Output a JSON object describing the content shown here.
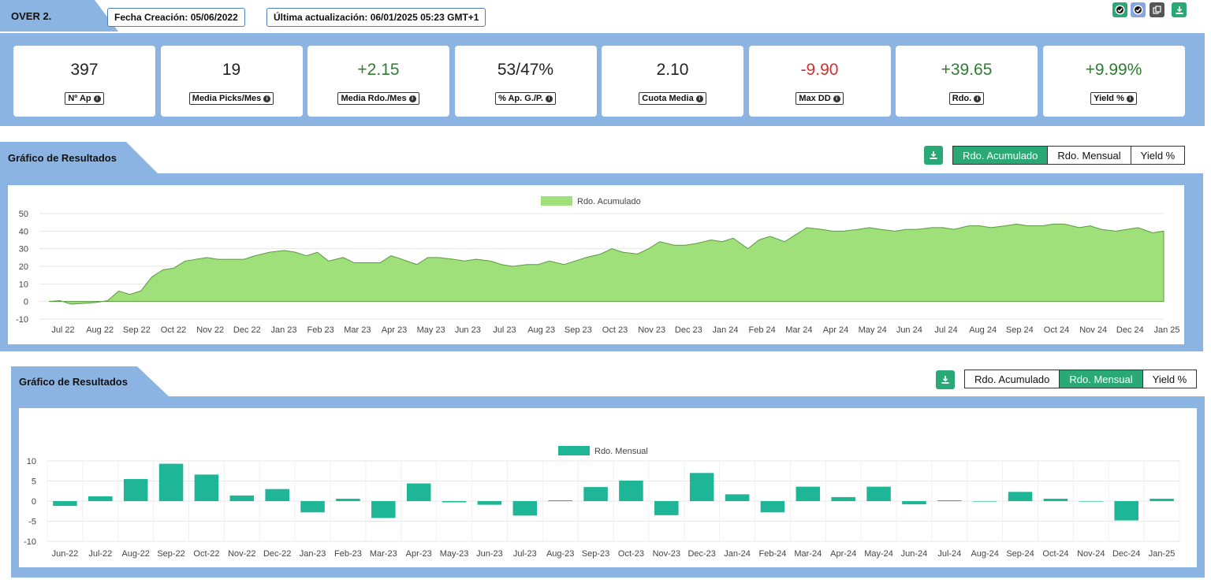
{
  "header": {
    "title": "OVER 2.",
    "created": "Fecha Creación: 05/06/2022",
    "updated": "Última actualización: 06/01/2025 05:23 GMT+1"
  },
  "stats": [
    {
      "value": "397",
      "label": "Nº Ap",
      "color": "#222222"
    },
    {
      "value": "19",
      "label": "Media Picks/Mes",
      "color": "#222222"
    },
    {
      "value": "+2.15",
      "label": "Media Rdo./Mes",
      "color": "#2e7d32"
    },
    {
      "value": "53/47%",
      "label": "% Ap. G./P.",
      "color": "#222222"
    },
    {
      "value": "2.10",
      "label": "Cuota Media",
      "color": "#222222"
    },
    {
      "value": "-9.90",
      "label": "Max DD",
      "color": "#d32f2f"
    },
    {
      "value": "+39.65",
      "label": "Rdo.",
      "color": "#2e7d32"
    },
    {
      "value": "+9.99%",
      "label": "Yield %",
      "color": "#2e7d32"
    }
  ],
  "section1": {
    "title": "Gráfico de Resultados",
    "tabs": [
      "Rdo. Acumulado",
      "Rdo. Mensual",
      "Yield %"
    ],
    "active": 0
  },
  "section2": {
    "title": "Gráfico de Resultados",
    "tabs": [
      "Rdo. Acumulado",
      "Rdo. Mensual",
      "Yield %"
    ],
    "active": 1
  },
  "colors": {
    "accent": "#2aa876",
    "panel": "#8cb4e2",
    "area": "#a0e07a",
    "bar": "#1fb597"
  },
  "chart_data": [
    {
      "type": "area",
      "legend": "Rdo. Acumulado",
      "legend_position": "top-center",
      "ylim": [
        -10,
        50
      ],
      "yticks": [
        -10,
        0,
        10,
        20,
        30,
        40,
        50
      ],
      "x_tick_labels": [
        "Jul 22",
        "Aug 22",
        "Sep 22",
        "Oct 22",
        "Nov 22",
        "Dec 22",
        "Jan 23",
        "Feb 23",
        "Mar 23",
        "Apr 23",
        "May 23",
        "Jun 23",
        "Jul 23",
        "Aug 23",
        "Sep 23",
        "Oct 23",
        "Nov 23",
        "Dec 23",
        "Jan 24",
        "Feb 24",
        "Mar 24",
        "Apr 24",
        "May 24",
        "Jun 24",
        "Jul 24",
        "Aug 24",
        "Sep 24",
        "Oct 24",
        "Nov 24",
        "Dec 24",
        "Jan 25"
      ],
      "x": [
        0,
        0.3,
        0.6,
        1.0,
        1.3,
        1.6,
        1.9,
        2.2,
        2.5,
        2.8,
        3.1,
        3.4,
        3.7,
        4.0,
        4.3,
        4.6,
        5.0,
        5.3,
        5.6,
        6.0,
        6.4,
        6.7,
        7.0,
        7.3,
        7.6,
        8.0,
        8.3,
        8.6,
        9.0,
        9.3,
        9.6,
        10.0,
        10.3,
        10.6,
        11.0,
        11.3,
        11.6,
        12.0,
        12.3,
        12.6,
        13.0,
        13.3,
        13.6,
        14.0,
        14.3,
        14.6,
        15.0,
        15.3,
        15.6,
        16.0,
        16.3,
        16.6,
        17.0,
        17.3,
        17.6,
        18.0,
        18.3,
        18.6,
        19.0,
        19.3,
        19.6,
        20.0,
        20.3,
        20.6,
        21.0,
        21.3,
        21.6,
        22.0,
        22.3,
        22.6,
        23.0,
        23.3,
        23.6,
        24.0,
        24.3,
        24.6,
        25.0,
        25.3,
        25.6,
        26.0,
        26.3,
        26.6,
        27.0,
        27.3,
        27.6,
        28.0,
        28.3,
        28.6,
        29.0,
        29.3,
        29.6,
        30.0,
        30.3
      ],
      "y": [
        0,
        0.5,
        -1.5,
        -1.0,
        -0.5,
        0.5,
        6,
        4,
        6,
        14,
        18,
        19,
        23,
        24,
        25,
        24,
        24,
        24,
        26,
        28,
        29,
        28,
        26,
        28,
        23,
        25,
        22,
        22,
        22,
        26,
        24,
        21,
        25,
        25,
        24,
        23,
        24,
        23,
        21,
        20,
        21,
        21,
        23,
        21,
        23,
        25,
        27,
        30,
        28,
        27,
        30,
        34,
        32,
        32,
        33,
        35,
        34,
        36,
        30,
        35,
        37,
        34,
        38,
        42,
        41,
        40,
        40,
        41,
        42,
        41,
        40,
        41,
        41,
        42,
        42,
        41,
        43,
        43,
        42,
        43,
        44,
        43,
        43,
        44,
        44,
        42,
        43,
        41,
        40,
        41,
        42,
        39,
        40
      ]
    },
    {
      "type": "bar",
      "legend": "Rdo. Mensual",
      "legend_position": "top-center",
      "ylim": [
        -10,
        10
      ],
      "yticks": [
        -10,
        -5,
        0,
        5,
        10
      ],
      "categories": [
        "Jun-22",
        "Jul-22",
        "Aug-22",
        "Sep-22",
        "Oct-22",
        "Nov-22",
        "Dec-22",
        "Jan-23",
        "Feb-23",
        "Mar-23",
        "Apr-23",
        "May-23",
        "Jun-23",
        "Jul-23",
        "Aug-23",
        "Sep-23",
        "Oct-23",
        "Nov-23",
        "Dec-23",
        "Jan-24",
        "Feb-24",
        "Mar-24",
        "Apr-24",
        "May-24",
        "Jun-24",
        "Jul-24",
        "Aug-24",
        "Sep-24",
        "Oct-24",
        "Nov-24",
        "Dec-24",
        "Jan-25"
      ],
      "values": [
        -1.2,
        1.2,
        5.5,
        9.3,
        6.6,
        1.4,
        3.0,
        -2.8,
        0.6,
        -4.2,
        4.4,
        -0.3,
        -0.9,
        -3.6,
        0.2,
        3.5,
        5.1,
        -3.5,
        7.0,
        1.7,
        -2.8,
        3.6,
        1.0,
        3.6,
        -0.8,
        0.2,
        -0.1,
        2.3,
        0.6,
        0,
        -4.8,
        0.6
      ]
    }
  ]
}
